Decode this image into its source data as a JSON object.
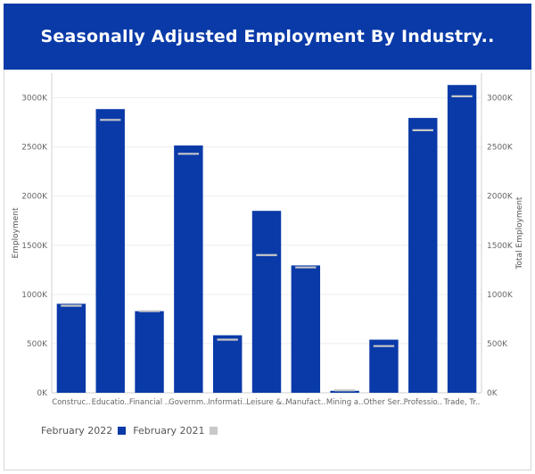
{
  "title": "Seasonally Adjusted Employment By Industry..",
  "colors": {
    "header_bg": "#0a3aa8",
    "bar": "#0a3aa8",
    "line_marker": "#c8c8c8",
    "grid": "#eeeeee",
    "axis_text": "#666666"
  },
  "chart_data": {
    "type": "bar",
    "title": "Seasonally Adjusted Employment By Industry..",
    "ylabel_left": "Employment",
    "ylabel_right": "Total Employment",
    "ylim": [
      0,
      3250
    ],
    "y_ticks": [
      0,
      500,
      1000,
      1500,
      2000,
      2500,
      3000
    ],
    "y_tick_labels": [
      "0K",
      "500K",
      "1000K",
      "1500K",
      "2000K",
      "2500K",
      "3000K"
    ],
    "grid": true,
    "legend_position": "bottom-left",
    "categories": [
      "Construc..",
      "Educatio..",
      "Financial ..",
      "Governm..",
      "Informati..",
      "Leisure &..",
      "Manufact..",
      "Mining a..",
      "Other Ser..",
      "Professio..",
      "Trade, Tr.."
    ],
    "series": [
      {
        "name": "February 2022",
        "type": "bar",
        "color": "#0a3aa8",
        "values": [
          905,
          2885,
          830,
          2515,
          585,
          1850,
          1295,
          20,
          540,
          2795,
          3130
        ]
      },
      {
        "name": "February 2021",
        "type": "marker",
        "color": "#c8c8c8",
        "values": [
          885,
          2775,
          830,
          2430,
          540,
          1400,
          1275,
          25,
          475,
          2670,
          3015
        ]
      }
    ]
  }
}
